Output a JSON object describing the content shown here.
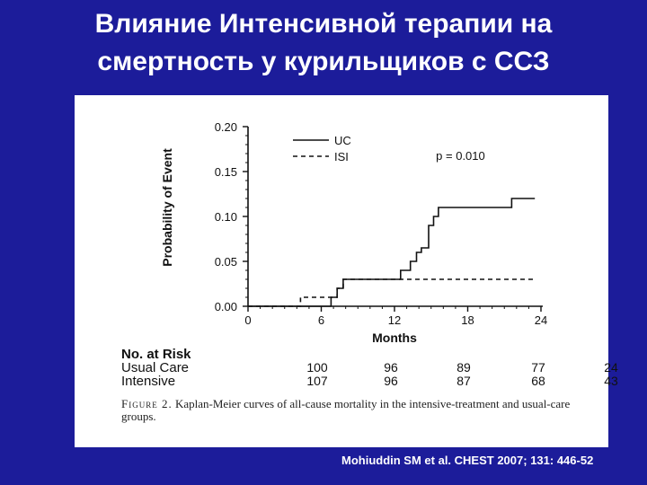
{
  "slide": {
    "title_line1": "Влияние Интенсивной терапии на",
    "title_line2": "смертность у курильщиков с ССЗ",
    "citation": "Mohiuddin SM et al. CHEST 2007; 131: 446-52",
    "background_color": "#1c1c9a"
  },
  "chart_data": {
    "type": "line",
    "title": "",
    "xlabel": "Months",
    "ylabel": "Probability of Event",
    "xlim": [
      0,
      24
    ],
    "ylim": [
      0,
      0.2
    ],
    "xticks": [
      0,
      6,
      12,
      18,
      24
    ],
    "yticks": [
      0.0,
      0.05,
      0.1,
      0.15,
      0.2
    ],
    "ytick_labels": [
      "0.00",
      "0.05",
      "0.10",
      "0.15",
      "0.20"
    ],
    "legend_position": "top-left",
    "annotation": "p = 0.010",
    "grid": false,
    "series": [
      {
        "name": "UC",
        "style": "solid",
        "points": [
          [
            0,
            0
          ],
          [
            6.8,
            0
          ],
          [
            6.8,
            0.01
          ],
          [
            7.3,
            0.01
          ],
          [
            7.3,
            0.02
          ],
          [
            7.8,
            0.02
          ],
          [
            7.8,
            0.03
          ],
          [
            12.5,
            0.03
          ],
          [
            12.5,
            0.04
          ],
          [
            13.3,
            0.04
          ],
          [
            13.3,
            0.05
          ],
          [
            13.8,
            0.05
          ],
          [
            13.8,
            0.06
          ],
          [
            14.2,
            0.06
          ],
          [
            14.2,
            0.065
          ],
          [
            14.8,
            0.065
          ],
          [
            14.8,
            0.09
          ],
          [
            15.2,
            0.09
          ],
          [
            15.2,
            0.1
          ],
          [
            15.6,
            0.1
          ],
          [
            15.6,
            0.11
          ],
          [
            21.6,
            0.11
          ],
          [
            21.6,
            0.12
          ],
          [
            23.5,
            0.12
          ]
        ]
      },
      {
        "name": "ISI",
        "style": "dashed",
        "points": [
          [
            0,
            0
          ],
          [
            4.3,
            0
          ],
          [
            4.3,
            0.01
          ],
          [
            7.3,
            0.01
          ],
          [
            7.3,
            0.02
          ],
          [
            7.8,
            0.02
          ],
          [
            7.8,
            0.03
          ],
          [
            23.5,
            0.03
          ]
        ]
      }
    ]
  },
  "risk_table": {
    "title": "No. at Risk",
    "months": [
      0,
      6,
      12,
      18,
      24
    ],
    "rows": [
      {
        "label": "Usual Care",
        "values": [
          "100",
          "96",
          "89",
          "77",
          "24"
        ]
      },
      {
        "label": "Intensive",
        "values": [
          "107",
          "96",
          "87",
          "68",
          "43"
        ]
      }
    ]
  },
  "caption": {
    "lead": "Figure 2.",
    "text": "Kaplan-Meier curves of all-cause mortality in the intensive-treatment and usual-care groups."
  }
}
